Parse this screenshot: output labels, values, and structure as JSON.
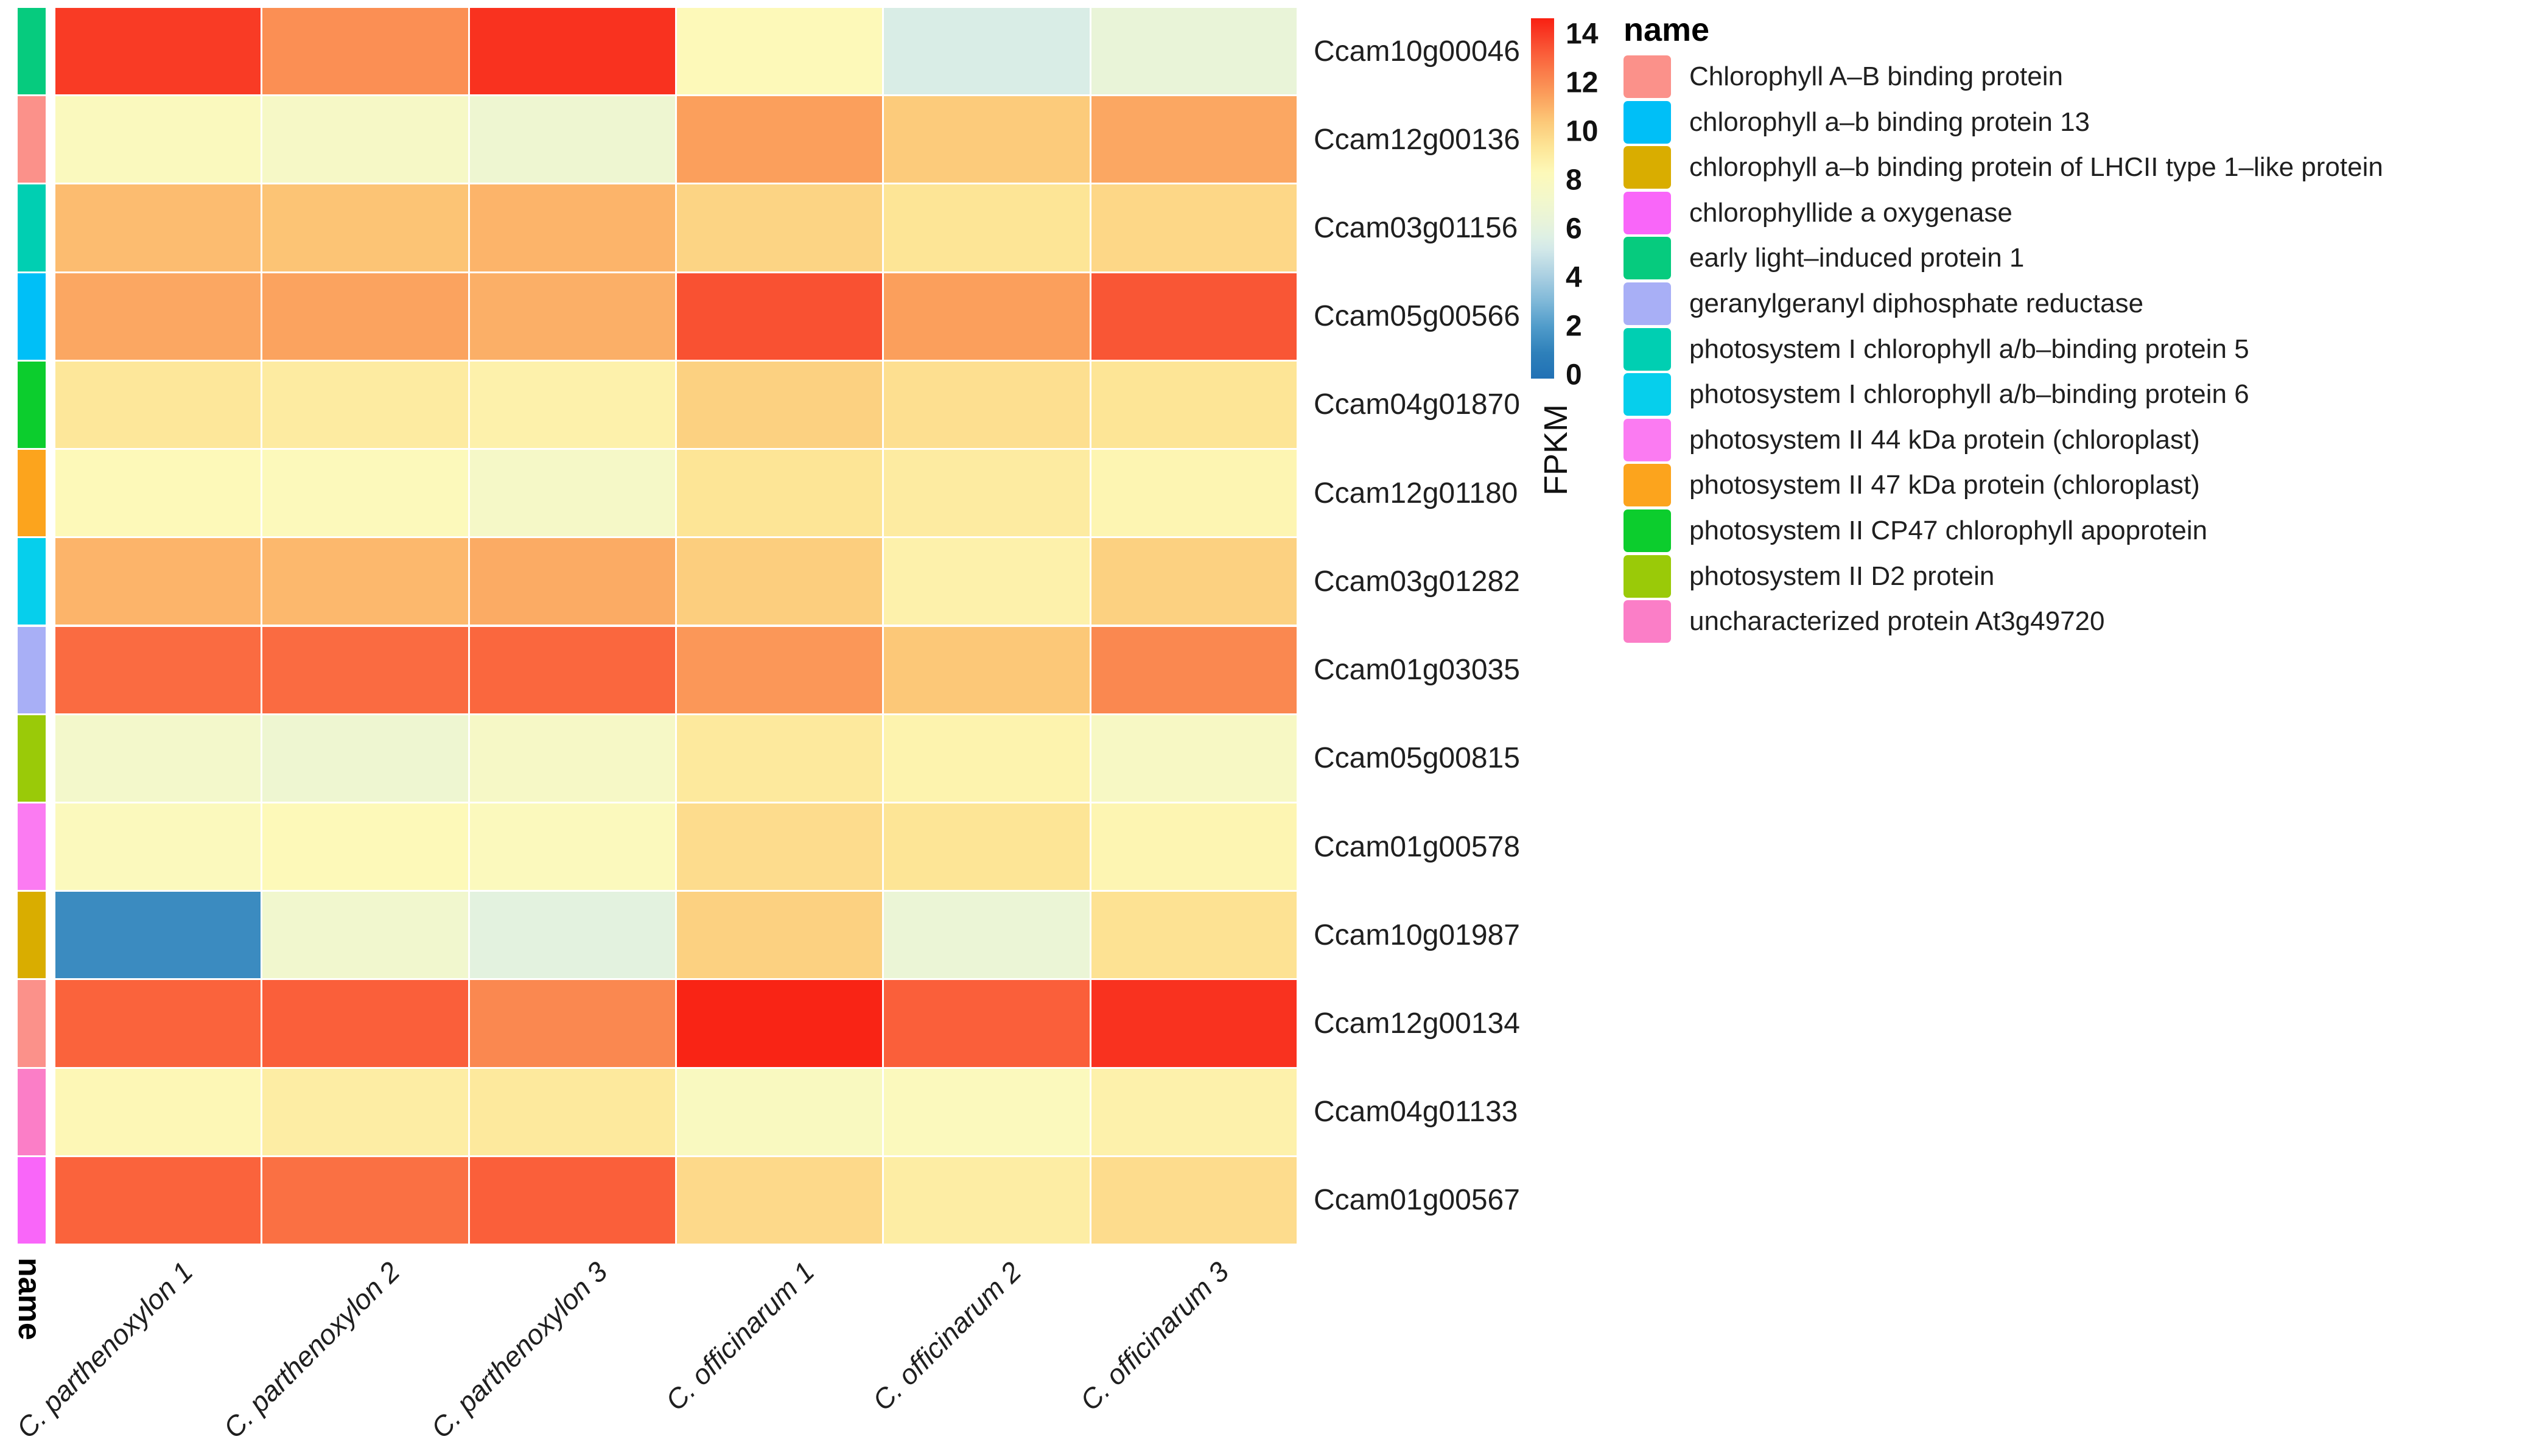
{
  "figure": {
    "colorbar_label": "FPKM",
    "annotation_title": "name",
    "legend_title": "name"
  },
  "chart_data": {
    "type": "heatmap",
    "value_label": "FPKM",
    "value_range": [
      0,
      14
    ],
    "colorbar_ticks": [
      14,
      12,
      10,
      8,
      6,
      4,
      2,
      0
    ],
    "legend_position": "right",
    "grid": false,
    "columns": [
      "C. parthenoxylon 1",
      "C. parthenoxylon 2",
      "C. parthenoxylon 3",
      "C. officinarum 1",
      "C. officinarum 2",
      "C. officinarum 3"
    ],
    "annotation_title": "name",
    "rows": [
      {
        "id": "Ccam10g00046",
        "annotation": "early light–induced protein 1",
        "values": [
          13.4,
          11.4,
          13.6,
          8.0,
          5.3,
          6.2
        ]
      },
      {
        "id": "Ccam12g00136",
        "annotation": "Chlorophyll A–B binding protein",
        "values": [
          7.7,
          7.3,
          6.6,
          11.0,
          9.9,
          10.8
        ]
      },
      {
        "id": "Ccam03g01156",
        "annotation": "photosystem I chlorophyll a/b–binding protein 5",
        "values": [
          10.3,
          10.1,
          10.5,
          9.6,
          9.0,
          9.5
        ]
      },
      {
        "id": "Ccam05g00566",
        "annotation": "chlorophyll a–b binding protein 13",
        "values": [
          10.8,
          10.9,
          10.6,
          12.9,
          11.0,
          12.8
        ]
      },
      {
        "id": "Ccam04g01870",
        "annotation": "photosystem II CP47 chlorophyll apoprotein",
        "values": [
          8.9,
          8.7,
          8.4,
          9.7,
          9.2,
          9.0
        ]
      },
      {
        "id": "Ccam12g01180",
        "annotation": "photosystem II 47 kDa protein (chloroplast)",
        "values": [
          8.0,
          7.9,
          7.2,
          9.0,
          8.7,
          8.2
        ]
      },
      {
        "id": "Ccam03g01282",
        "annotation": "photosystem I chlorophyll a/b–binding protein 6",
        "values": [
          10.5,
          10.4,
          10.7,
          9.8,
          8.4,
          9.7
        ]
      },
      {
        "id": "Ccam01g03035",
        "annotation": "geranylgeranyl diphosphate reductase",
        "values": [
          12.3,
          12.3,
          12.4,
          11.2,
          10.0,
          11.6
        ]
      },
      {
        "id": "Ccam05g00815",
        "annotation": "photosystem II D2 protein",
        "values": [
          7.0,
          6.6,
          7.3,
          8.8,
          8.3,
          7.4
        ]
      },
      {
        "id": "Ccam01g00578",
        "annotation": "photosystem II 44 kDa protein (chloroplast)",
        "values": [
          7.8,
          8.0,
          7.8,
          9.3,
          9.0,
          8.2
        ]
      },
      {
        "id": "Ccam10g01987",
        "annotation": "chlorophyll a–b binding protein of LHCII type 1–like protein",
        "values": [
          1.4,
          6.8,
          5.8,
          9.7,
          6.3,
          9.1
        ]
      },
      {
        "id": "Ccam12g00134",
        "annotation": "Chlorophyll A–B binding protein",
        "values": [
          12.5,
          12.6,
          11.6,
          13.9,
          12.6,
          13.6
        ]
      },
      {
        "id": "Ccam04g01133",
        "annotation": "uncharacterized protein At3g49720",
        "values": [
          8.1,
          8.6,
          8.8,
          7.6,
          7.8,
          8.4
        ]
      },
      {
        "id": "Ccam01g00567",
        "annotation": "chlorophyllide a oxygenase",
        "values": [
          12.5,
          12.2,
          12.6,
          9.4,
          8.6,
          9.3
        ]
      }
    ],
    "annotation_colors": {
      "Chlorophyll A–B binding protein": "#fb918a",
      "chlorophyll a–b binding protein 13": "#00bff7",
      "chlorophyll a–b binding protein of LHCII type 1–like protein": "#d9ad00",
      "chlorophyllide a oxygenase": "#f966f9",
      "early light–induced protein 1": "#06cb7e",
      "geranylgeranyl diphosphate reductase": "#a8aff6",
      "photosystem I chlorophyll a/b–binding protein 5": "#00cfb2",
      "photosystem I chlorophyll a/b–binding protein 6": "#06cfec",
      "photosystem II 44 kDa protein (chloroplast)": "#fb7bf2",
      "photosystem II 47 kDa protein (chloroplast)": "#fca41d",
      "photosystem II CP47 chlorophyll apoprotein": "#0ccd2d",
      "photosystem II D2 protein": "#9aca08",
      "uncharacterized protein At3g49720": "#fb7ec7"
    },
    "legend": {
      "title": "name",
      "entries": [
        {
          "label": "Chlorophyll A–B binding protein",
          "color": "#fb918a"
        },
        {
          "label": "chlorophyll a–b binding protein 13",
          "color": "#00bff7"
        },
        {
          "label": "chlorophyll a–b binding protein of LHCII type 1–like protein",
          "color": "#d9ad00"
        },
        {
          "label": "chlorophyllide a oxygenase",
          "color": "#f966f9"
        },
        {
          "label": "early light–induced protein 1",
          "color": "#06cb7e"
        },
        {
          "label": "geranylgeranyl diphosphate reductase",
          "color": "#a8aff6"
        },
        {
          "label": "photosystem I chlorophyll a/b–binding protein 5",
          "color": "#00cfb2"
        },
        {
          "label": "photosystem I chlorophyll a/b–binding protein 6",
          "color": "#06cfec"
        },
        {
          "label": "photosystem II 44 kDa protein (chloroplast)",
          "color": "#fb7bf2"
        },
        {
          "label": "photosystem II 47 kDa protein (chloroplast)",
          "color": "#fca41d"
        },
        {
          "label": "photosystem II CP47 chlorophyll apoprotein",
          "color": "#0ccd2d"
        },
        {
          "label": "photosystem II D2 protein",
          "color": "#9aca08"
        },
        {
          "label": "uncharacterized protein At3g49720",
          "color": "#fb7ec7"
        }
      ]
    },
    "colorscale": [
      [
        0,
        "#2171b5"
      ],
      [
        1,
        "#2e80ba"
      ],
      [
        2,
        "#4f9bca"
      ],
      [
        3,
        "#7fb8d8"
      ],
      [
        4,
        "#abd0e2"
      ],
      [
        5,
        "#d2e8e9"
      ],
      [
        5.5,
        "#def0e4"
      ],
      [
        6,
        "#e7f3db"
      ],
      [
        7,
        "#f3f8cb"
      ],
      [
        8,
        "#fdf9b9"
      ],
      [
        9,
        "#fde596"
      ],
      [
        10,
        "#fcc878"
      ],
      [
        11,
        "#fb9f5c"
      ],
      [
        12,
        "#fa7848"
      ],
      [
        12.5,
        "#fa633c"
      ],
      [
        13,
        "#f94d30"
      ],
      [
        13.5,
        "#f93622"
      ],
      [
        14,
        "#f92012"
      ]
    ]
  }
}
